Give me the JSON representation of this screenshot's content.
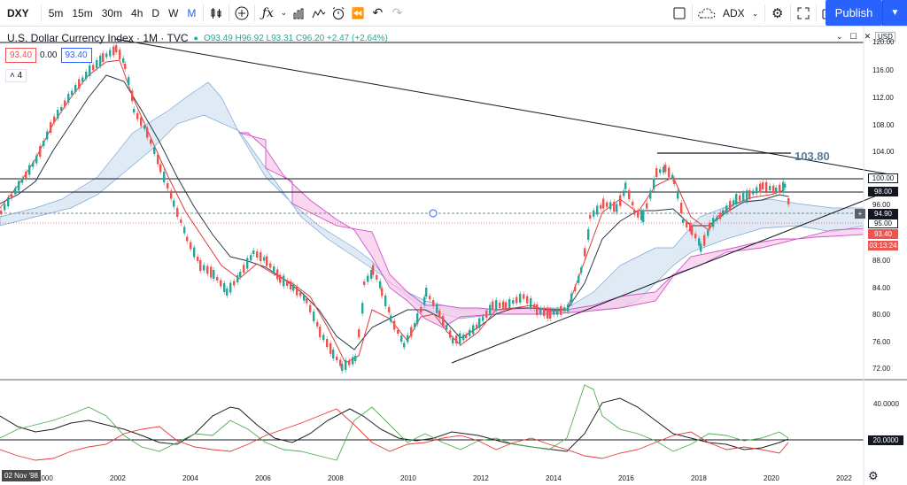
{
  "toolbar": {
    "symbol": "DXY",
    "timeframes": [
      "5m",
      "15m",
      "30m",
      "4h",
      "D",
      "W",
      "M"
    ],
    "active_timeframe": "M",
    "indicator_label": "ADX",
    "publish_label": "Publish"
  },
  "legend": {
    "title": "U.S. Dollar Currency Index · 1M · TVC",
    "ohlc": "O93.49 H96.92 L93.31 C96.20 +2.47 (+2.64%)",
    "price_left": "93.40",
    "price_mid": "0.00",
    "price_right": "93.40",
    "collapse": "4"
  },
  "price_axis": {
    "currency": "USD",
    "ticks": [
      "120.00",
      "116.00",
      "112.00",
      "108.00",
      "104.00",
      "100.00",
      "98.00",
      "96.00",
      "94.90",
      "95.00",
      "93.40",
      "03:13:24",
      "88.00",
      "84.00",
      "80.00",
      "76.00",
      "72.00"
    ],
    "tags": {
      "p100": "100.00",
      "p98": "98.00",
      "p9490": "94.90",
      "p95": "95.00",
      "p9340": "93.40",
      "countdown": "03:13:24"
    },
    "annotation": "103.80",
    "adx_ticks": [
      "40.0000",
      "20.0000"
    ]
  },
  "time_axis": {
    "years": [
      "2000",
      "2002",
      "2004",
      "2006",
      "2008",
      "2010",
      "2012",
      "2014",
      "2016",
      "2018",
      "2020",
      "2022"
    ],
    "cursor_date": "02 Nov '98"
  },
  "colors": {
    "up": "#26a69a",
    "down": "#ef5350",
    "ma_red": "#e53935",
    "ma_dark": "#2a3a4a",
    "cloud_blue": "#c9dcef",
    "cloud_pink": "#f7c8e8",
    "accent": "#2962ff"
  }
}
